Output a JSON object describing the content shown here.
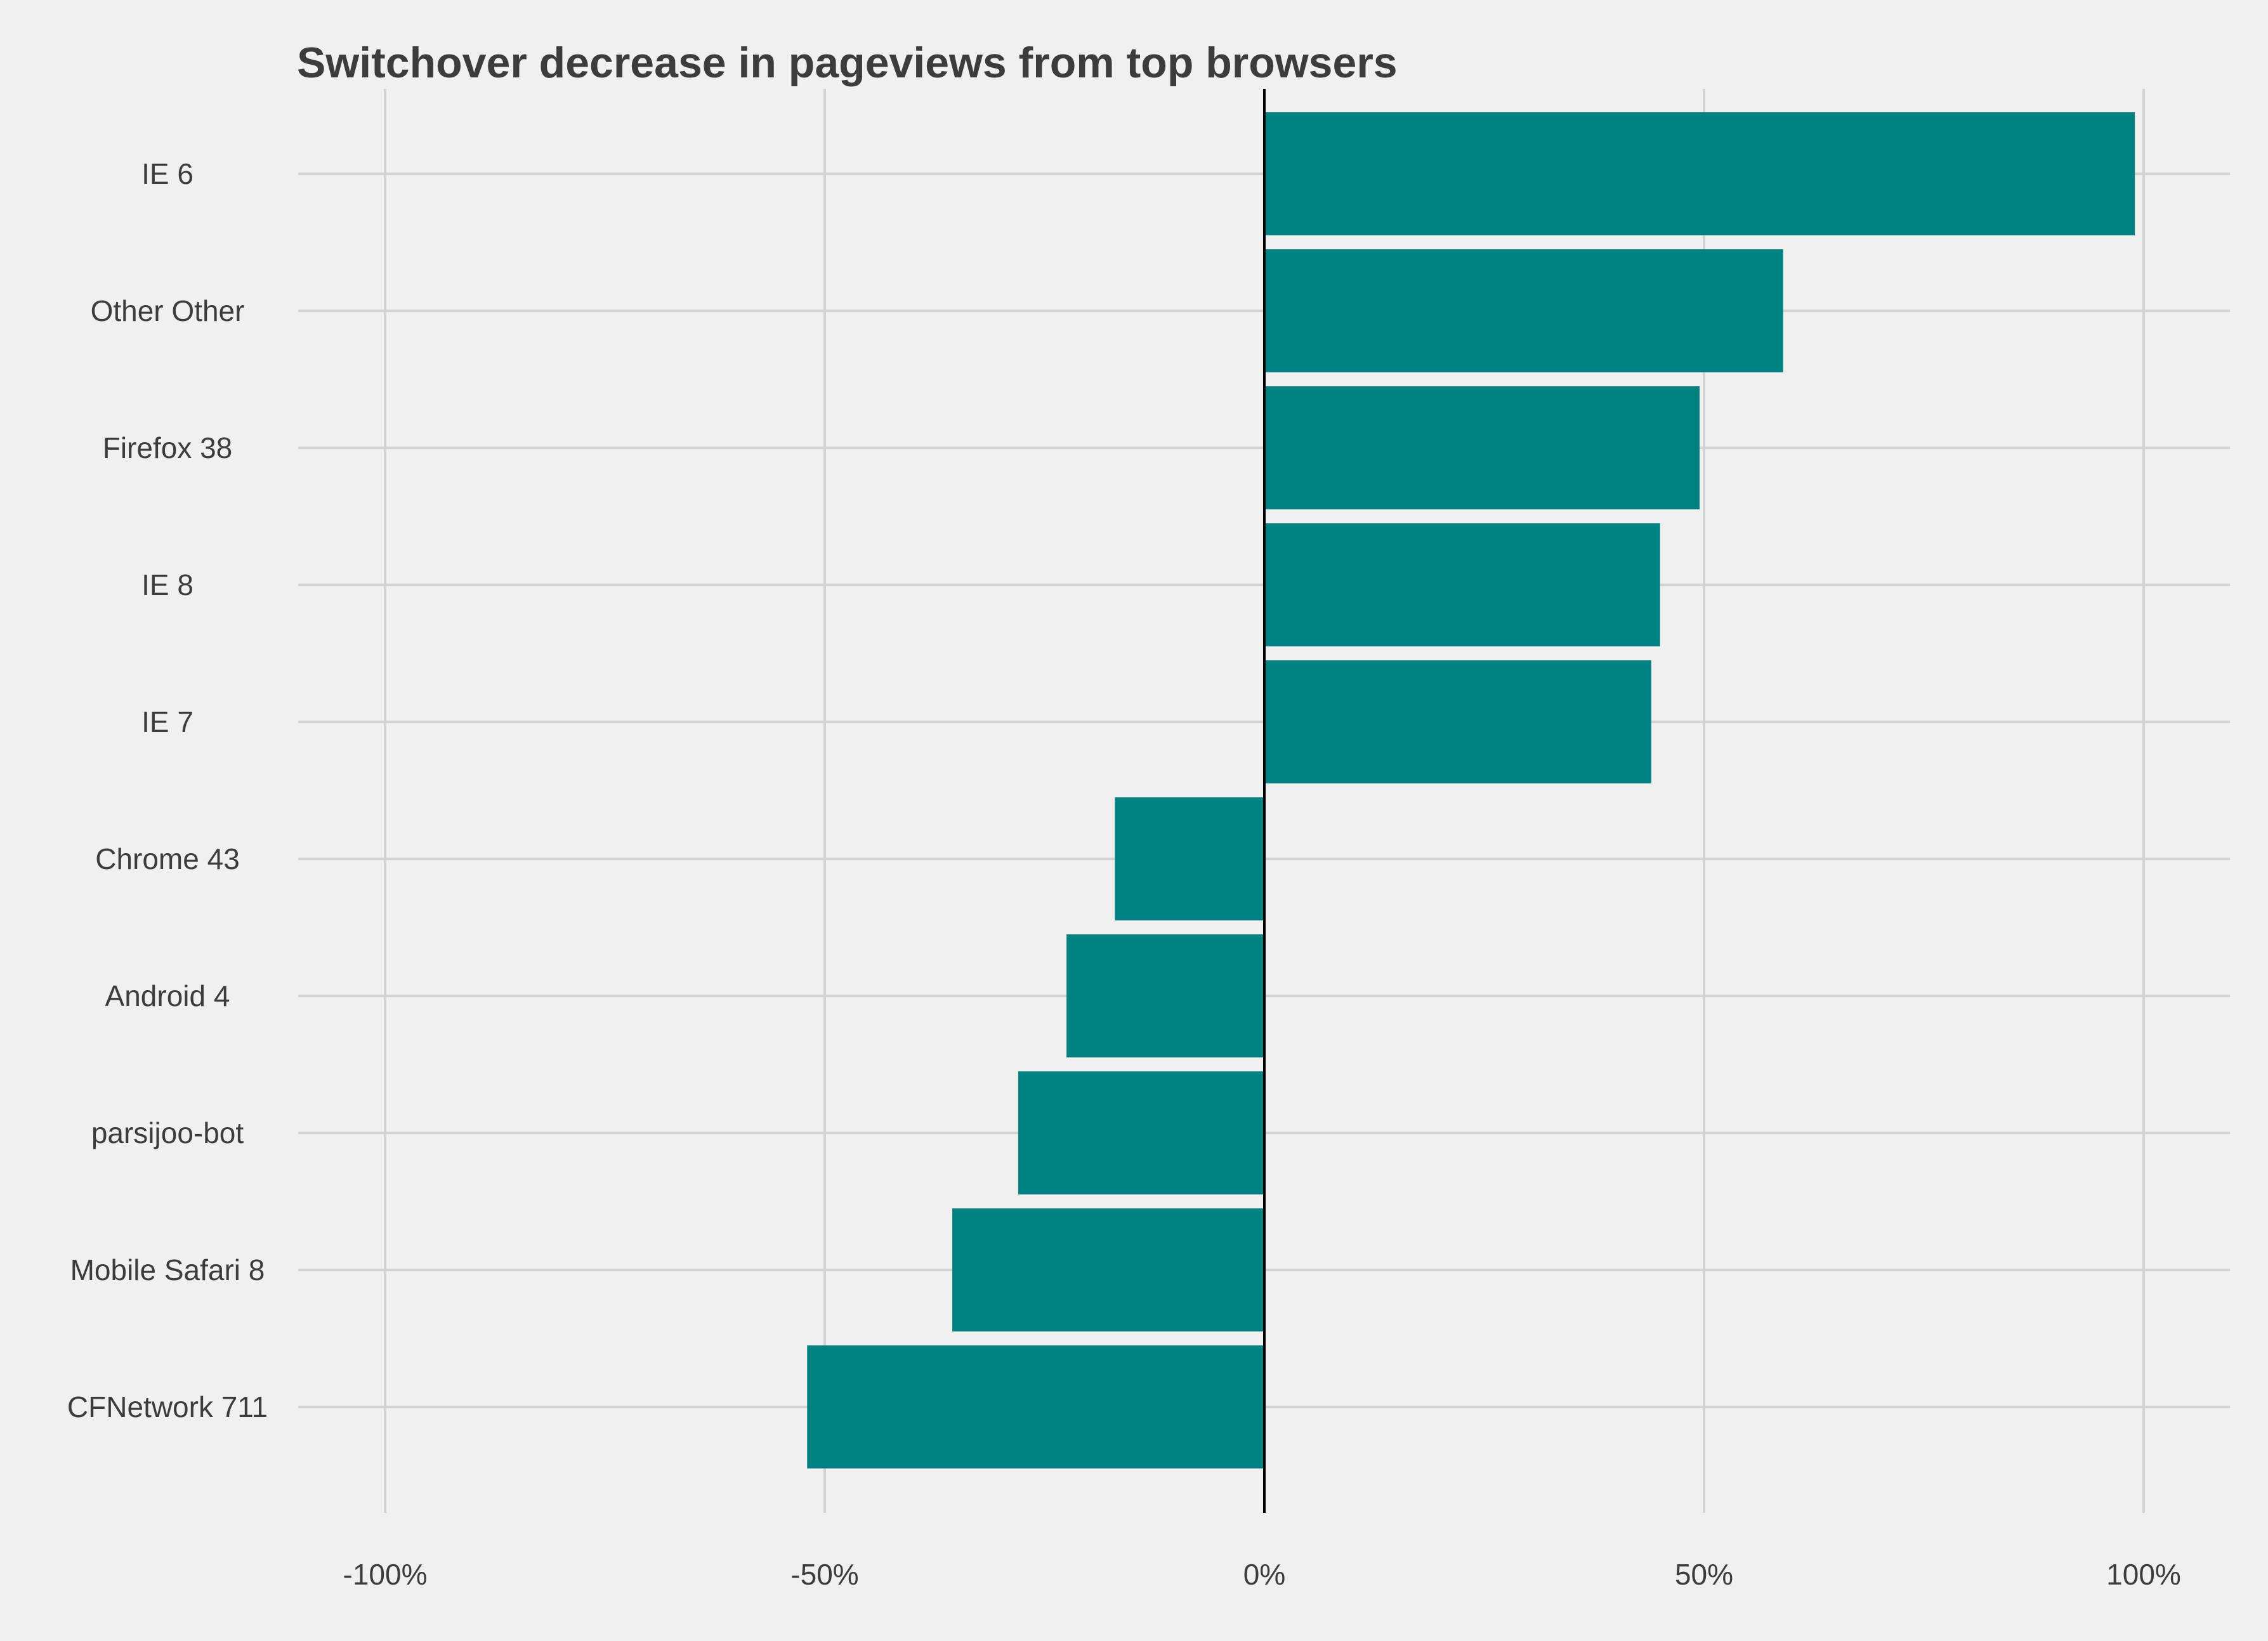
{
  "chart_data": {
    "type": "bar",
    "orientation": "horizontal",
    "title": "Switchover decrease in pageviews from top browsers",
    "xlabel": "",
    "ylabel": "",
    "categories": [
      "IE 6",
      "Other Other",
      "Firefox 38",
      "IE 8",
      "IE 7",
      "Chrome 43",
      "Android 4",
      "parsijoo-bot",
      "Mobile Safari 8",
      "CFNetwork 711"
    ],
    "values": [
      99,
      59,
      49.5,
      45,
      44,
      -17,
      -22.5,
      -28,
      -35.5,
      -52
    ],
    "xlim": [
      -110,
      110
    ],
    "xticks": [
      -100,
      -50,
      0,
      50,
      100
    ],
    "xtick_labels": [
      "-100%",
      "-50%",
      "0%",
      "50%",
      "100%"
    ],
    "grid": true,
    "legend": "none",
    "bar_color": "#008080",
    "background_color": "#f0f0f0"
  }
}
